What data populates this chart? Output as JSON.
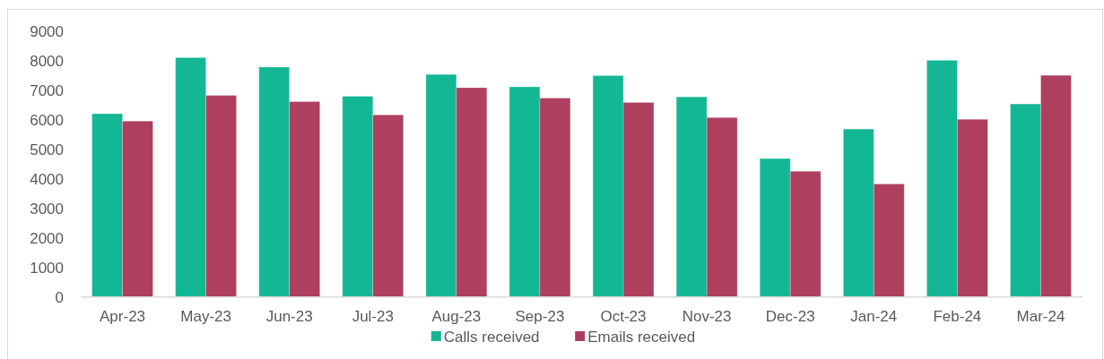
{
  "chart_data": {
    "type": "bar",
    "categories": [
      "Apr-23",
      "May-23",
      "Jun-23",
      "Jul-23",
      "Aug-23",
      "Sep-23",
      "Oct-23",
      "Nov-23",
      "Dec-23",
      "Jan-24",
      "Feb-24",
      "Mar-24"
    ],
    "series": [
      {
        "name": "Calls received",
        "color": "#14b794",
        "values": [
          6210,
          8110,
          7790,
          6800,
          7540,
          7120,
          7500,
          6780,
          4690,
          5690,
          8020,
          6540
        ]
      },
      {
        "name": "Emails received",
        "color": "#ae3f5e",
        "values": [
          5960,
          6830,
          6620,
          6170,
          7090,
          6740,
          6590,
          6080,
          4260,
          3830,
          6020,
          7510
        ]
      }
    ],
    "ylim": [
      0,
      9000
    ],
    "yticks": [
      0,
      1000,
      2000,
      3000,
      4000,
      5000,
      6000,
      7000,
      8000,
      9000
    ],
    "legend": "bottom"
  }
}
